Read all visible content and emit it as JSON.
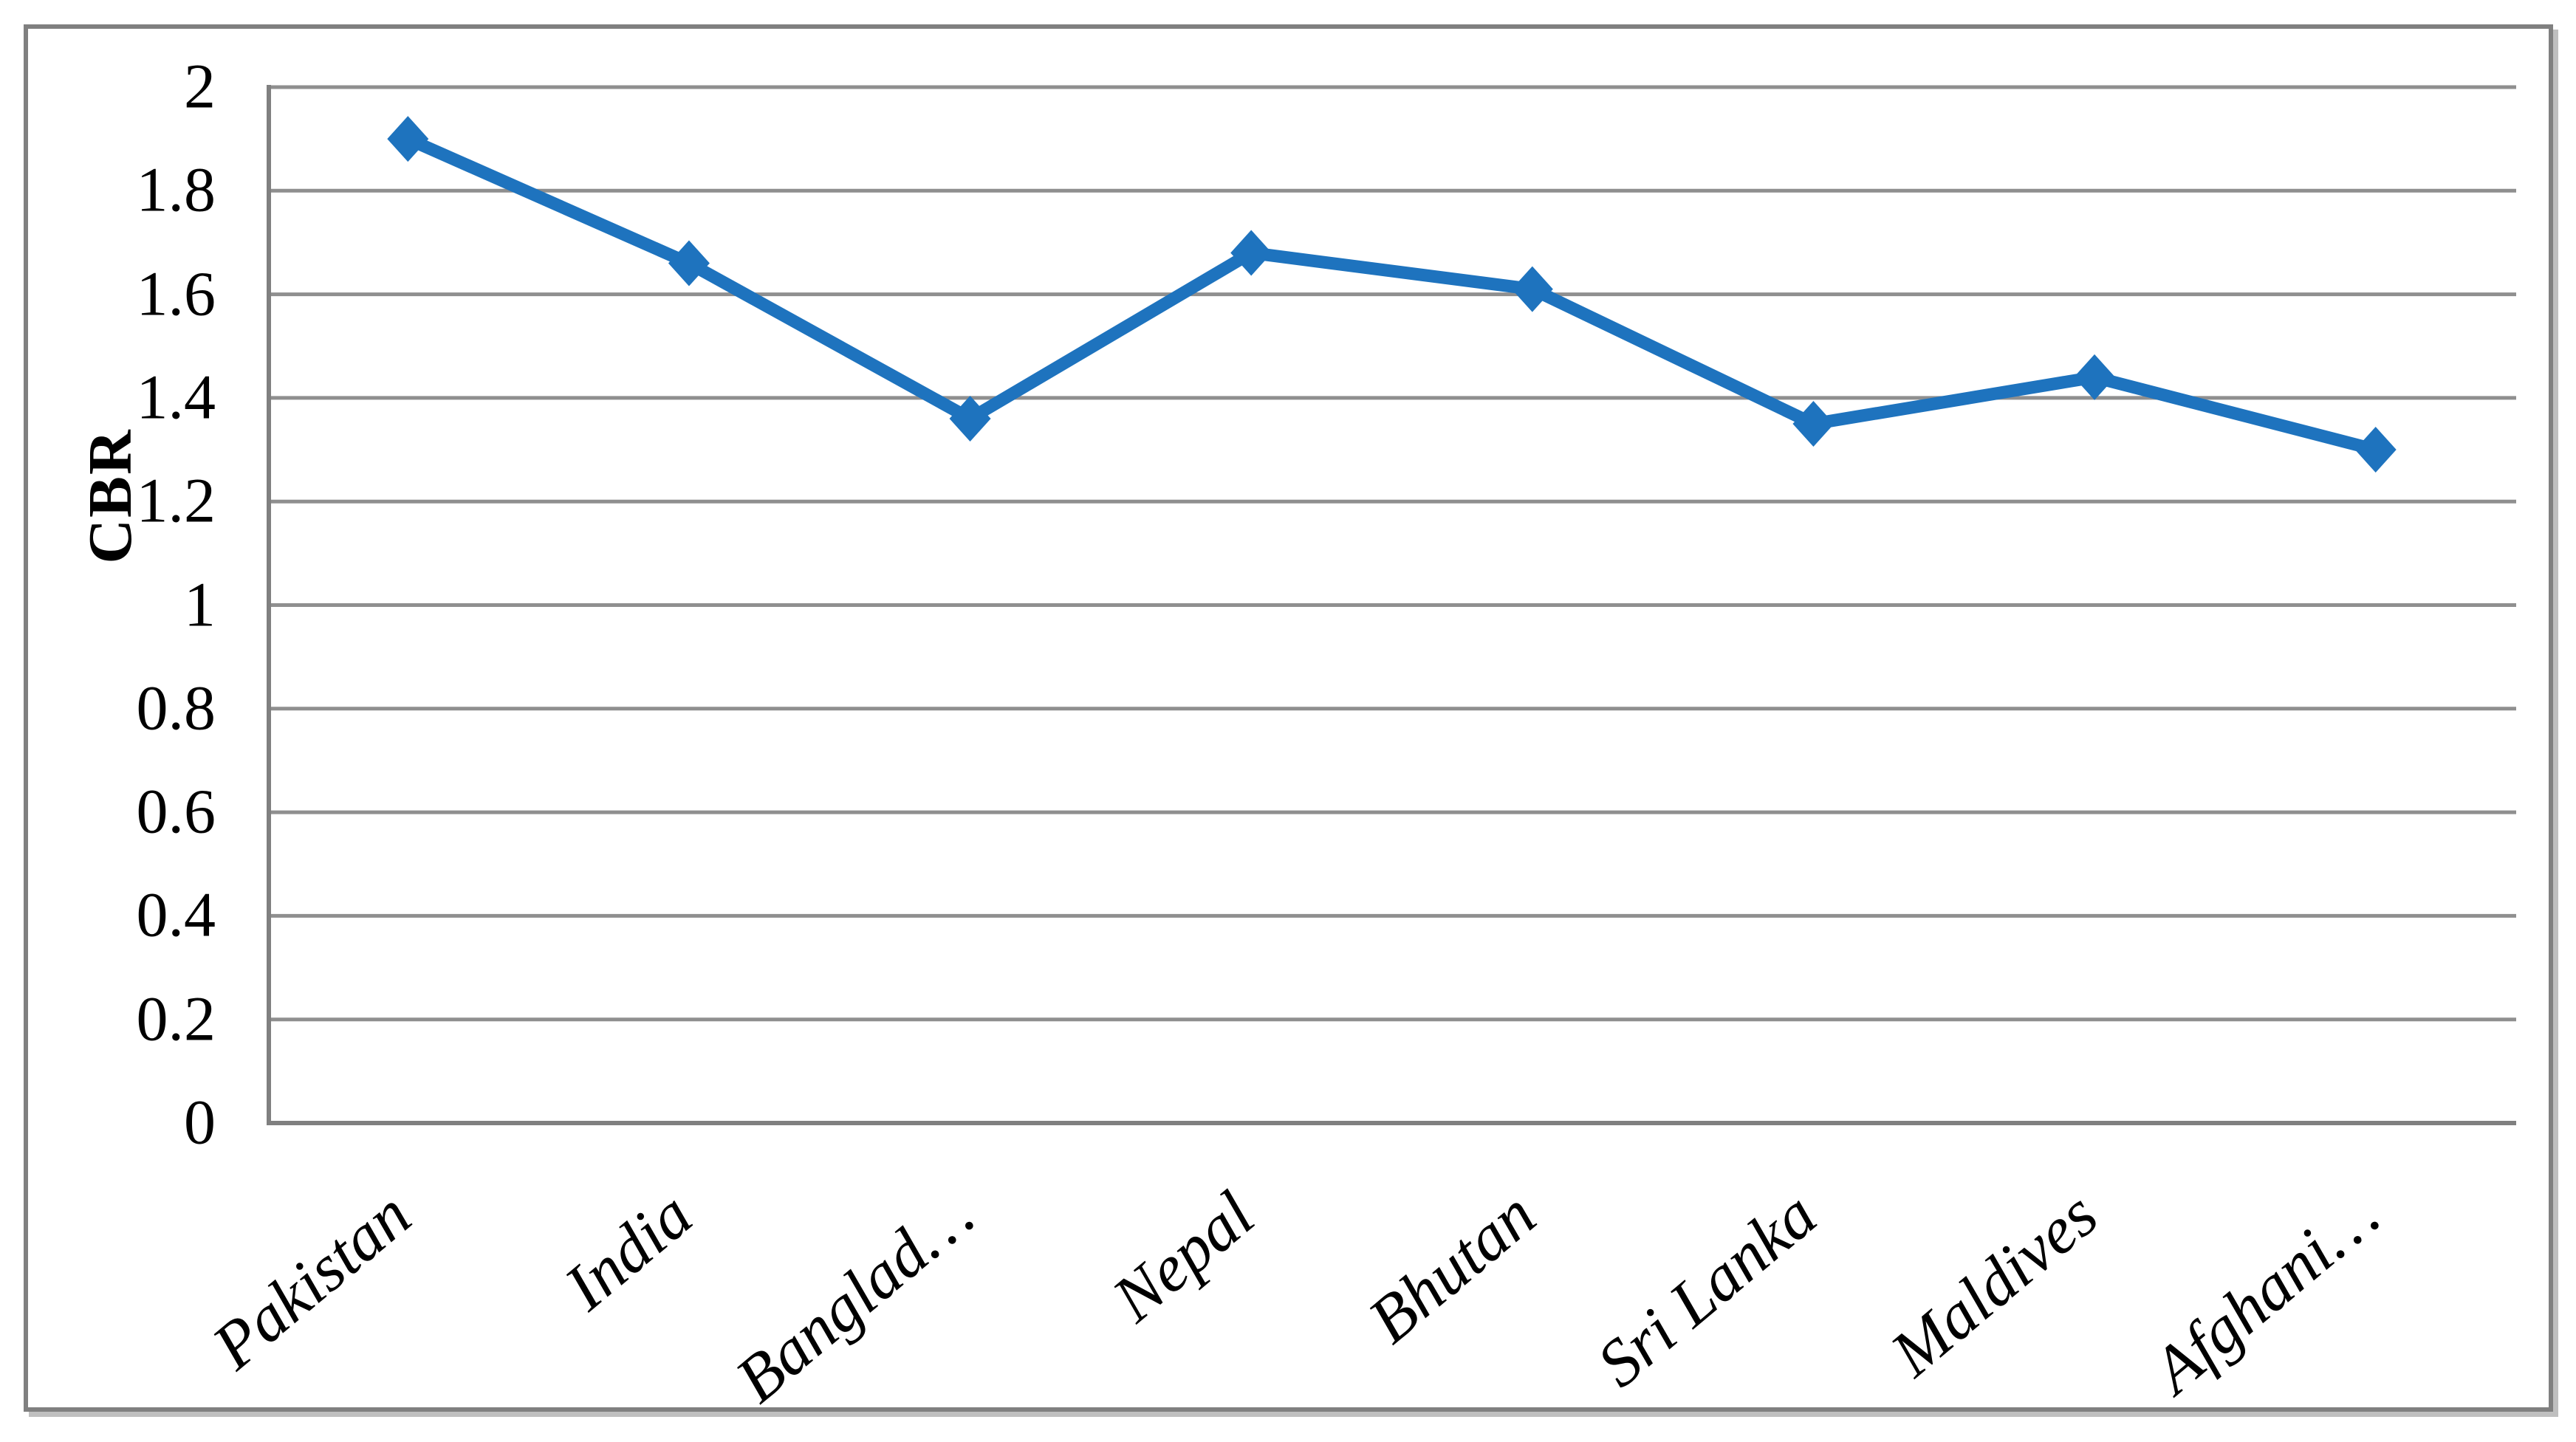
{
  "chart_data": {
    "type": "line",
    "title": "",
    "xlabel": "",
    "ylabel": "CBR",
    "categories": [
      "Pakistan",
      "India",
      "Banglad…",
      "Nepal",
      "Bhutan",
      "Sri Lanka",
      "Maldives",
      "Afghani…"
    ],
    "series": [
      {
        "name": "CBR",
        "values": [
          1.9,
          1.66,
          1.36,
          1.68,
          1.61,
          1.35,
          1.44,
          1.3
        ]
      }
    ],
    "ylim": [
      0,
      2
    ],
    "ytick_values": [
      0,
      0.2,
      0.4,
      0.6,
      0.8,
      1,
      1.2,
      1.4,
      1.6,
      1.8,
      2
    ],
    "ytick_labels": [
      "0",
      "0.2",
      "0.4",
      "0.6",
      "0.8",
      "1",
      "1.2",
      "1.4",
      "1.6",
      "1.8",
      "2"
    ],
    "grid": "horizontal",
    "legend": "none",
    "x_label_angle_deg": -40,
    "marker": "diamond",
    "style": {
      "series_color": "#1E73BE",
      "gridline_color": "#8F8F8F",
      "axis_color": "#808080",
      "figure_border_color": "#808080",
      "figure_shadow_color": "#BFBFBF",
      "background": "#FFFFFF",
      "text_color": "#000000"
    }
  }
}
